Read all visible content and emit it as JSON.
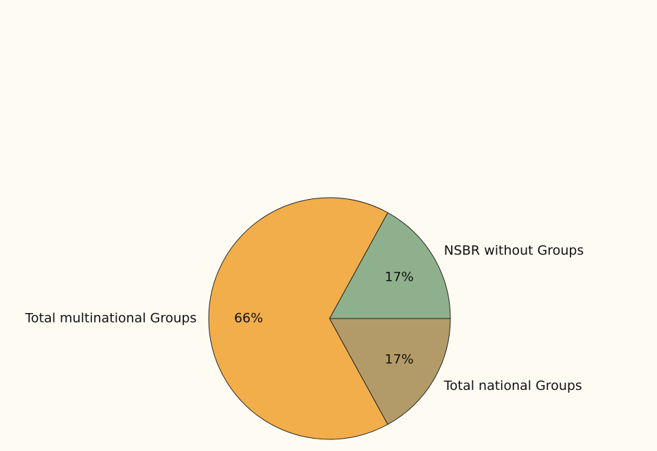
{
  "chart_data": {
    "type": "pie",
    "categories": [
      "NSBR without Groups",
      "Total multinational Groups",
      "Total national Groups"
    ],
    "values": [
      17,
      66,
      17
    ],
    "value_labels": [
      "17%",
      "66%",
      "17%"
    ],
    "colors": [
      "#8fb08c",
      "#f2ae4a",
      "#b39b69"
    ]
  }
}
